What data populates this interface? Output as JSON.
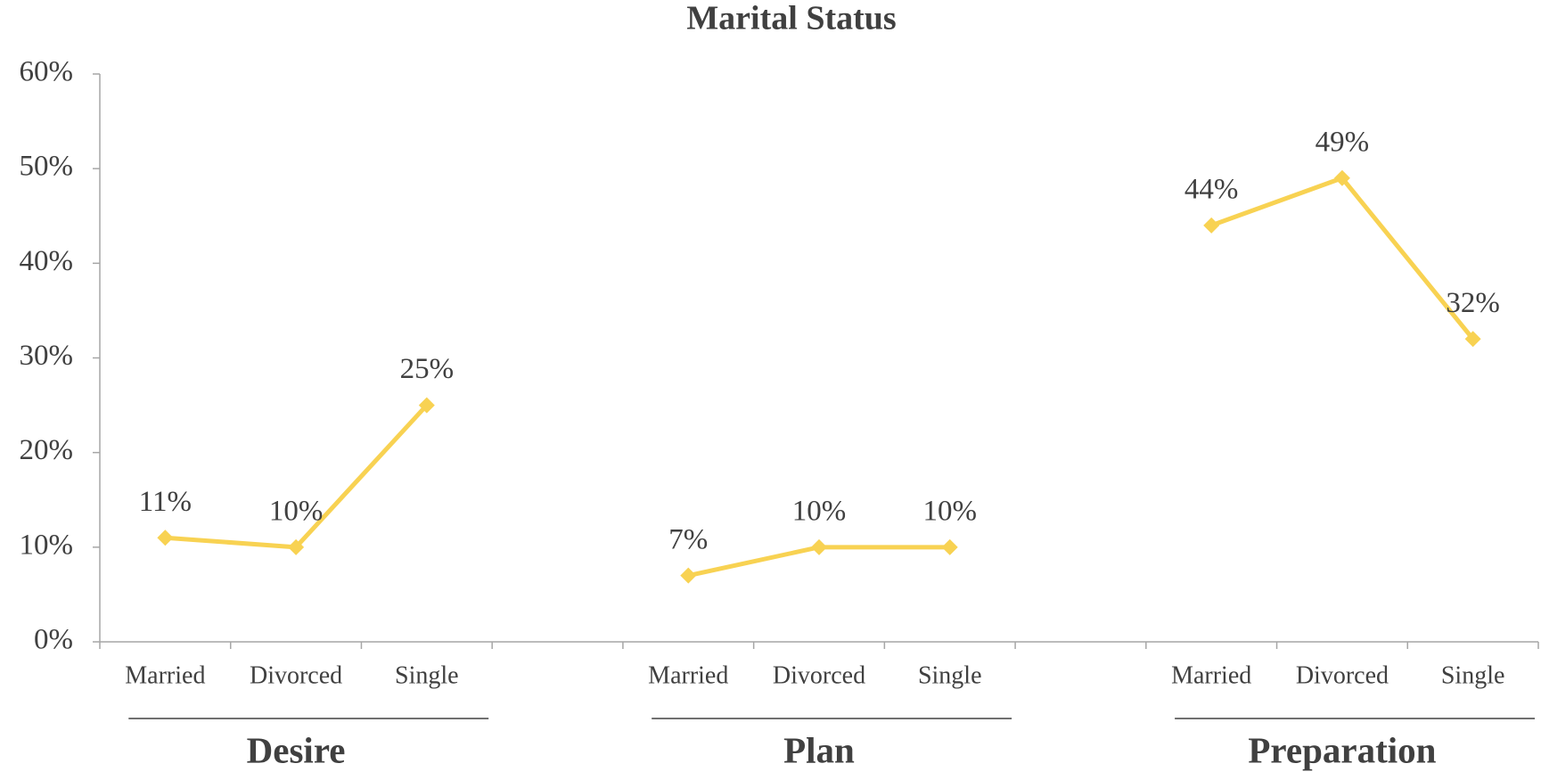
{
  "chart_data": {
    "type": "line",
    "title": "Marital Status",
    "categories": [
      "Married",
      "Divorced",
      "Single",
      null,
      "Married",
      "Divorced",
      "Single",
      null,
      "Married",
      "Divorced",
      "Single"
    ],
    "groups": [
      "Desire",
      "Plan",
      "Preparation"
    ],
    "series": [
      {
        "name": "Marital Status",
        "color": "#f8d252",
        "values": [
          11,
          10,
          25,
          null,
          7,
          10,
          10,
          null,
          44,
          49,
          32
        ],
        "value_labels": [
          "11%",
          "10%",
          "25%",
          null,
          "7%",
          "10%",
          "10%",
          null,
          "44%",
          "49%",
          "32%"
        ]
      }
    ],
    "ylim": [
      0,
      60
    ],
    "yticks": [
      {
        "value": 0,
        "label": "0%"
      },
      {
        "value": 10,
        "label": "10%"
      },
      {
        "value": 20,
        "label": "20%"
      },
      {
        "value": 30,
        "label": "30%"
      },
      {
        "value": 40,
        "label": "40%"
      },
      {
        "value": 50,
        "label": "50%"
      },
      {
        "value": 60,
        "label": "60%"
      }
    ],
    "grid": false
  }
}
